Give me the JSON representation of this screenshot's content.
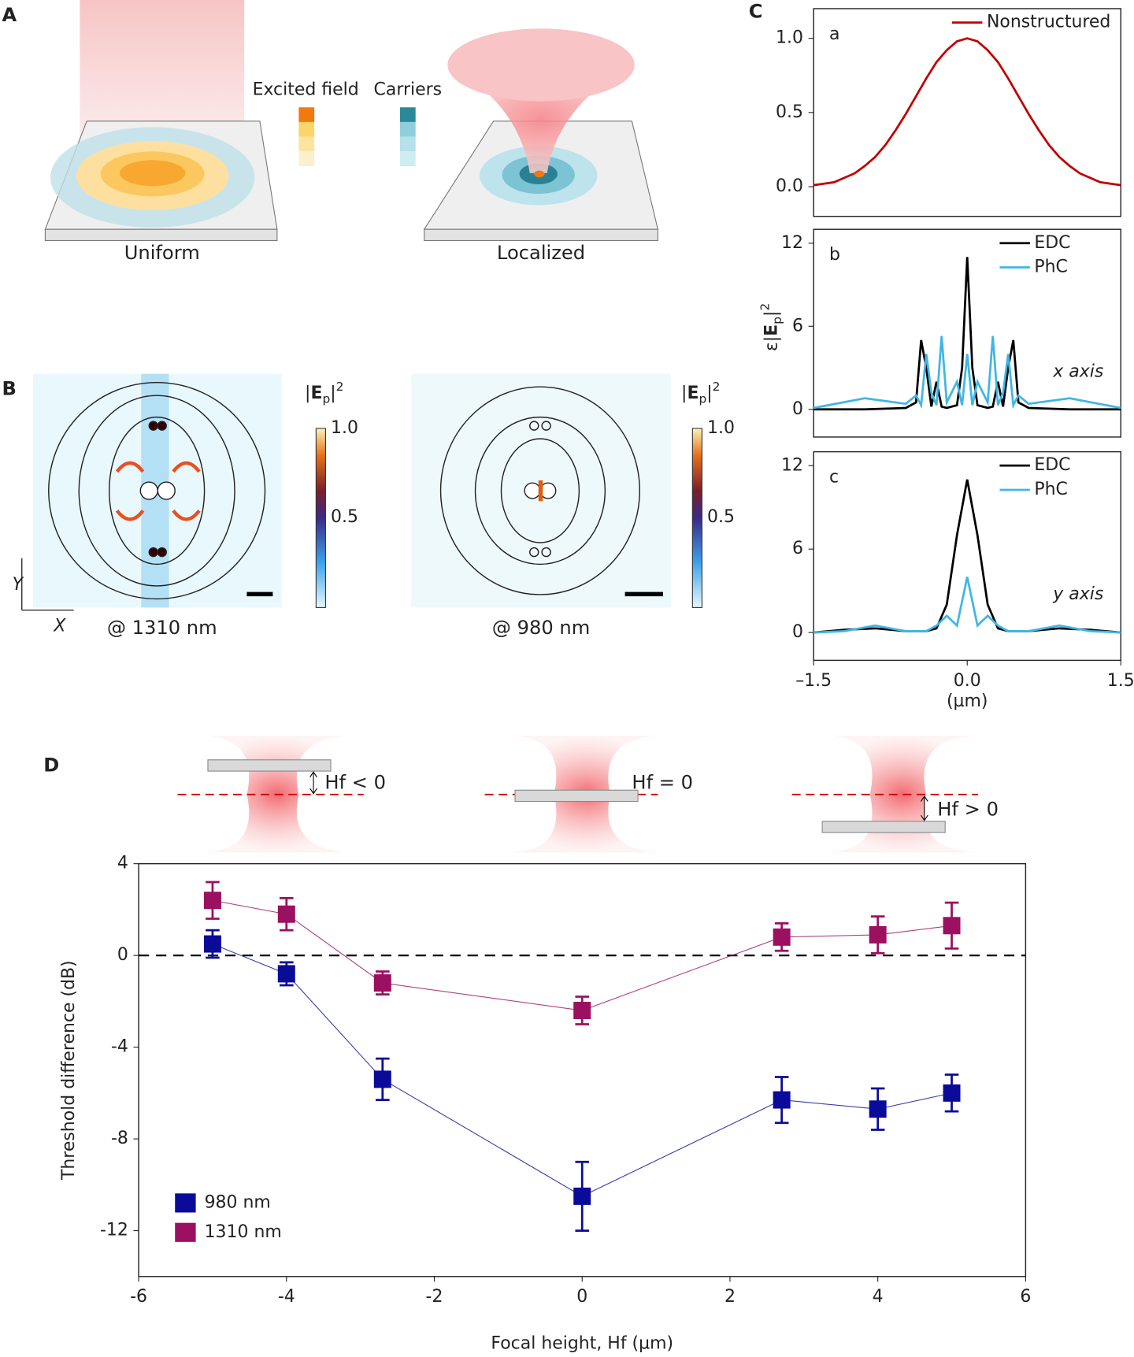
{
  "figure": {
    "A": {
      "label": "A",
      "legend": [
        "Excited field",
        "Carriers"
      ],
      "captions": [
        "Uniform",
        "Localized"
      ]
    },
    "B": {
      "label": "B",
      "colorbar_title": [
        "|",
        "E",
        "p",
        "|",
        "2"
      ],
      "colorbar_ticks": [
        "1.0",
        "0.5"
      ],
      "captions": [
        "@ 1310 nm",
        "@ 980 nm"
      ],
      "axes": [
        "Y",
        "X"
      ]
    },
    "C": {
      "label": "C",
      "ylabel": [
        "ε|",
        "E",
        "p",
        "|",
        "2"
      ]
    },
    "D": {
      "label": "D",
      "schematic": [
        "Hf < 0",
        "Hf = 0",
        "Hf > 0"
      ]
    }
  },
  "chart_data": [
    {
      "type": "line",
      "panel_label": "a",
      "xlim": [
        -1.5,
        1.5
      ],
      "ylim": [
        -0.2,
        1.2
      ],
      "yticks": [
        {
          "value": 0,
          "label": "0.0"
        },
        0.5,
        {
          "value": 1,
          "label": "1.0"
        }
      ],
      "legend": "upper right",
      "x": [
        -1.5,
        -1.4,
        -1.3,
        -1.2,
        -1.1,
        -1.0,
        -0.9,
        -0.8,
        -0.7,
        -0.6,
        -0.5,
        -0.4,
        -0.3,
        -0.2,
        -0.1,
        0,
        0.1,
        0.2,
        0.3,
        0.4,
        0.5,
        0.6,
        0.7,
        0.8,
        0.9,
        1.0,
        1.1,
        1.2,
        1.3,
        1.4,
        1.5
      ],
      "series": [
        {
          "name": "Nonstructured",
          "color": "#c00000",
          "values": [
            0.01,
            0.02,
            0.03,
            0.06,
            0.09,
            0.14,
            0.2,
            0.28,
            0.38,
            0.49,
            0.61,
            0.73,
            0.84,
            0.92,
            0.98,
            1.0,
            0.98,
            0.92,
            0.84,
            0.73,
            0.61,
            0.49,
            0.38,
            0.28,
            0.2,
            0.14,
            0.09,
            0.06,
            0.03,
            0.02,
            0.01
          ]
        }
      ]
    },
    {
      "type": "line",
      "panel_label": "b",
      "annotation": "x axis",
      "xlim": [
        -1.5,
        1.5
      ],
      "ylim": [
        -2,
        13
      ],
      "yticks": [
        0,
        6,
        12
      ],
      "legend": "upper right",
      "x": [
        -1.5,
        -1.0,
        -0.6,
        -0.5,
        -0.45,
        -0.4,
        -0.35,
        -0.3,
        -0.25,
        -0.2,
        -0.1,
        -0.05,
        0,
        0.05,
        0.1,
        0.2,
        0.25,
        0.3,
        0.35,
        0.4,
        0.45,
        0.5,
        0.6,
        1.0,
        1.5
      ],
      "series": [
        {
          "name": "EDC",
          "color": "#000000",
          "values": [
            0,
            0,
            0.1,
            0.5,
            5,
            3,
            0.2,
            2,
            0.2,
            0.1,
            0.3,
            3,
            11,
            3,
            0.3,
            0.1,
            0.2,
            2,
            0.2,
            3,
            5,
            0.5,
            0.1,
            0,
            0
          ]
        },
        {
          "name": "PhC",
          "color": "#41b6e6",
          "values": [
            0.1,
            0.8,
            0.4,
            1,
            0.3,
            4,
            1.2,
            0.3,
            5.3,
            0.5,
            2,
            0.3,
            4,
            0.3,
            2,
            0.5,
            5.3,
            0.3,
            1.2,
            4,
            0.3,
            1,
            0.4,
            0.8,
            0.1
          ]
        }
      ]
    },
    {
      "type": "line",
      "panel_label": "c",
      "annotation": "y axis",
      "xlim": [
        -1.5,
        1.5
      ],
      "ylim": [
        -2,
        13
      ],
      "yticks": [
        0,
        6,
        12
      ],
      "xticks": [
        {
          "value": -1.5,
          "label": "–1.5"
        },
        {
          "value": 0,
          "label": "0.0"
        },
        1.5
      ],
      "xlabel": "(µm)",
      "legend": "upper right",
      "x": [
        -1.5,
        -1.2,
        -0.9,
        -0.6,
        -0.4,
        -0.3,
        -0.2,
        -0.1,
        0,
        0.1,
        0.2,
        0.3,
        0.4,
        0.6,
        0.9,
        1.2,
        1.5
      ],
      "series": [
        {
          "name": "EDC",
          "color": "#000000",
          "values": [
            0,
            0.2,
            0.3,
            0.1,
            0.1,
            0.3,
            2,
            7,
            11,
            7,
            2,
            0.3,
            0.1,
            0.1,
            0.3,
            0.2,
            0
          ]
        },
        {
          "name": "PhC",
          "color": "#41b6e6",
          "values": [
            0,
            0.1,
            0.5,
            0.1,
            0.1,
            0.5,
            1.2,
            0.5,
            4,
            0.5,
            1.2,
            0.5,
            0.1,
            0.1,
            0.5,
            0.1,
            0
          ]
        }
      ]
    },
    {
      "type": "errorline",
      "xlabel": "Focal height, Hf (µm)",
      "ylabel": "Threshold difference (dB)",
      "xlim": [
        -6,
        6
      ],
      "ylim": [
        -14,
        4
      ],
      "xticks": [
        -6,
        -4,
        -2,
        0,
        2,
        4,
        6
      ],
      "yticks": [
        -12,
        -8,
        -4,
        0,
        4
      ],
      "hline": 0,
      "legend": "lower left",
      "x": [
        -5,
        -4,
        -2.7,
        0,
        2.7,
        4,
        5
      ],
      "series": [
        {
          "name": "980 nm",
          "color": "#0b0b99",
          "values": [
            0.5,
            -0.8,
            -5.4,
            -10.5,
            -6.3,
            -6.7,
            -6.0
          ],
          "errors": [
            0.6,
            0.5,
            0.9,
            1.5,
            1.0,
            0.9,
            0.8
          ]
        },
        {
          "name": "1310 nm",
          "color": "#9b1060",
          "values": [
            2.4,
            1.8,
            -1.2,
            -2.4,
            0.8,
            0.9,
            1.3
          ],
          "errors": [
            0.8,
            0.7,
            0.5,
            0.6,
            0.6,
            0.8,
            1.0
          ]
        }
      ]
    }
  ]
}
